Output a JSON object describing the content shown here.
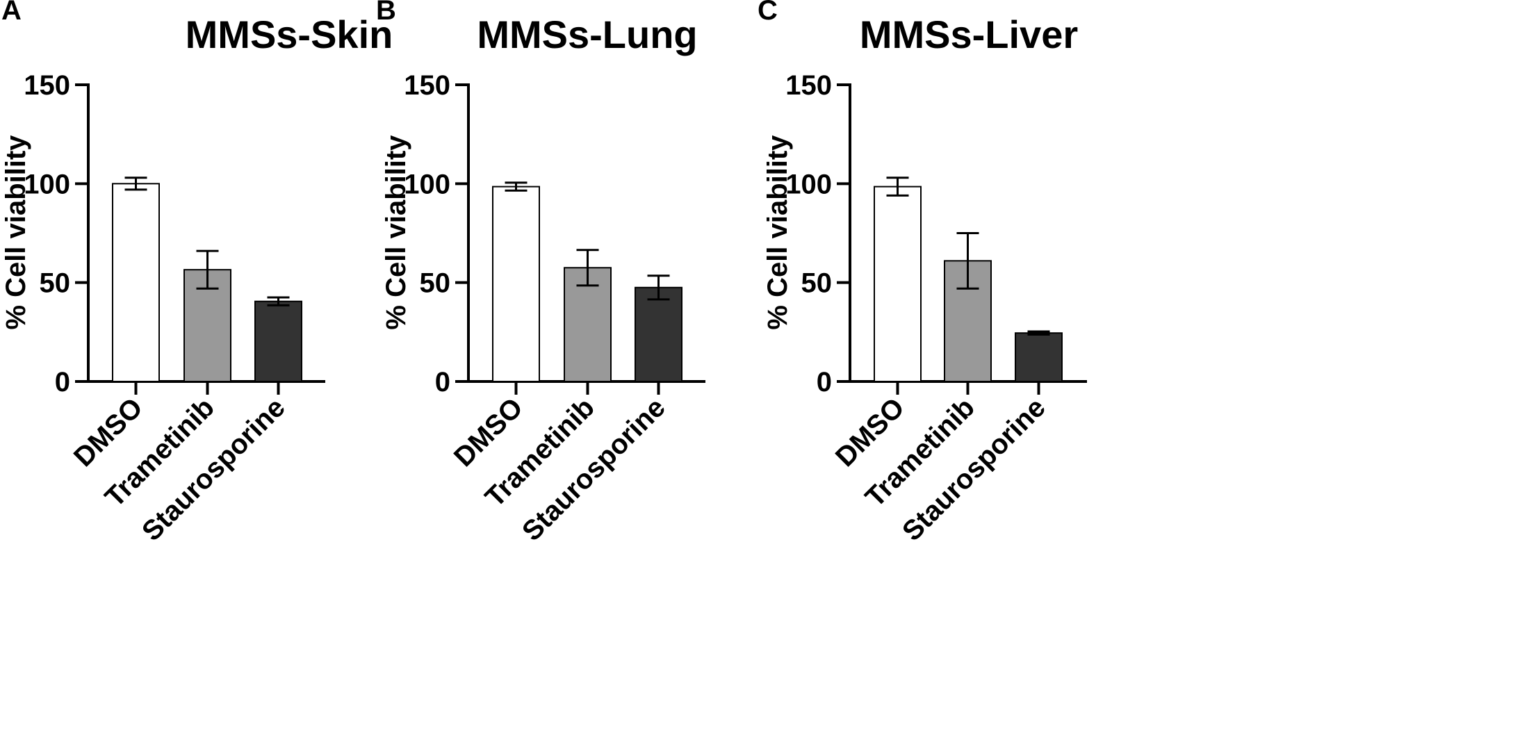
{
  "chart_data": [
    {
      "panel": "A",
      "type": "bar",
      "title": "MMSs-Skin",
      "ylabel": "% Cell viability",
      "xlabel": "",
      "ylim": [
        0,
        150
      ],
      "yticks": [
        "0",
        "50",
        "100",
        "150"
      ],
      "categories": [
        "DMSO",
        "Trametinib",
        "Staurosporine"
      ],
      "values": [
        100,
        56.5,
        40.5
      ],
      "error": [
        3,
        9.5,
        2
      ],
      "colors": [
        "#ffffff",
        "#999999",
        "#333333"
      ]
    },
    {
      "panel": "B",
      "type": "bar",
      "title": "MMSs-Lung",
      "ylabel": "% Cell viability",
      "xlabel": "",
      "ylim": [
        0,
        150
      ],
      "yticks": [
        "0",
        "50",
        "100",
        "150"
      ],
      "categories": [
        "DMSO",
        "Trametinib",
        "Staurosporine"
      ],
      "values": [
        98.5,
        57.5,
        47.5
      ],
      "error": [
        2,
        9,
        6
      ],
      "colors": [
        "#ffffff",
        "#999999",
        "#333333"
      ]
    },
    {
      "panel": "C",
      "type": "bar",
      "title": "MMSs-Liver",
      "ylabel": "% Cell viability",
      "xlabel": "",
      "ylim": [
        0,
        150
      ],
      "yticks": [
        "0",
        "50",
        "100",
        "150"
      ],
      "categories": [
        "DMSO",
        "Trametinib",
        "Staurosporine"
      ],
      "values": [
        98.5,
        61,
        24.5
      ],
      "error": [
        4.5,
        14,
        0.8
      ],
      "colors": [
        "#ffffff",
        "#999999",
        "#333333"
      ]
    }
  ]
}
